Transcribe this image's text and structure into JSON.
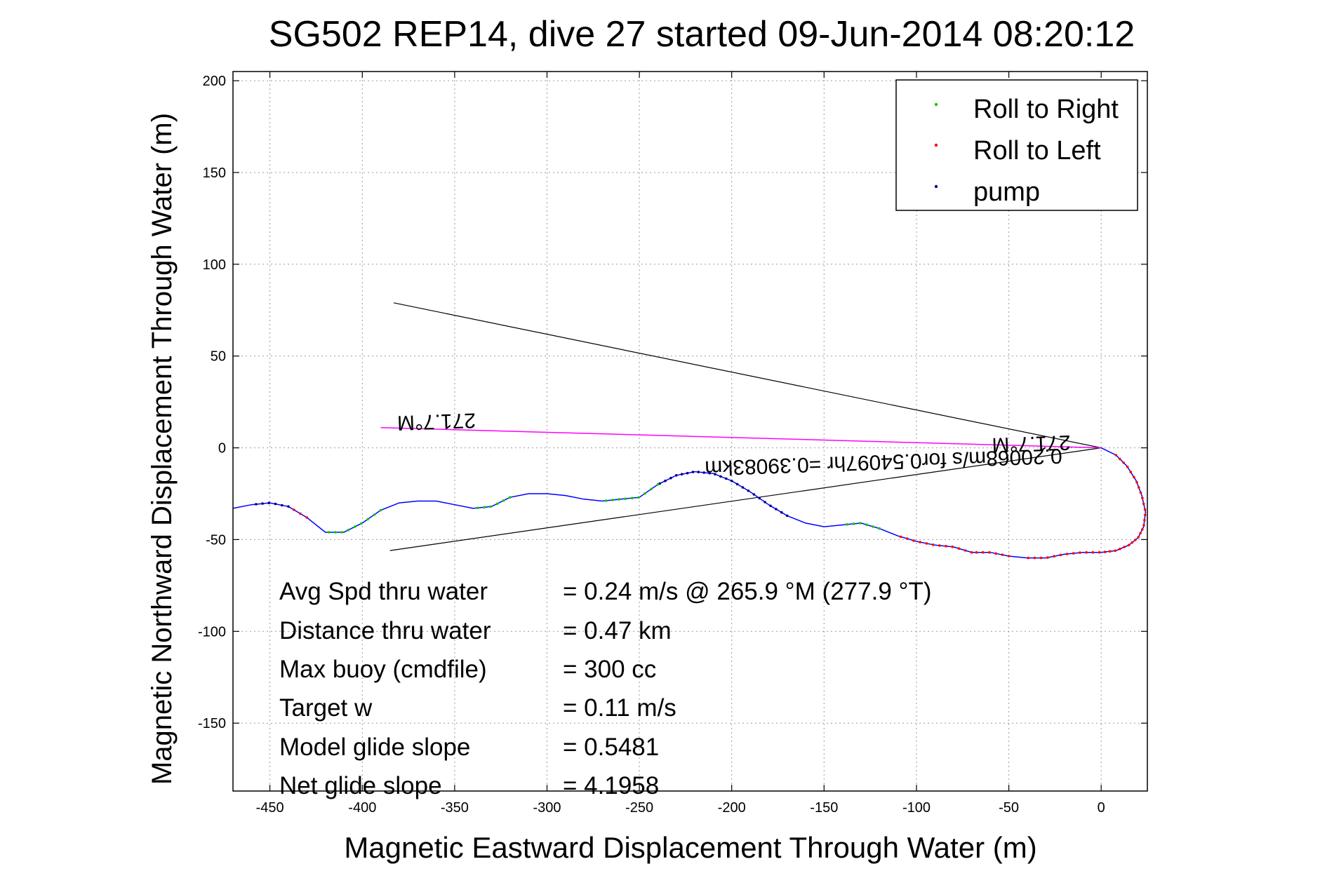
{
  "chart_data": {
    "type": "line",
    "title": "SG502 REP14, dive 27 started 09-Jun-2014 08:20:12",
    "xlabel": "Magnetic Eastward Displacement Through Water (m)",
    "ylabel": "Magnetic Northward Displacement Through Water (m)",
    "xlim": [
      -470,
      25
    ],
    "ylim": [
      -187,
      205
    ],
    "xticks": [
      -450,
      -400,
      -350,
      -300,
      -250,
      -200,
      -150,
      -100,
      -50,
      0
    ],
    "yticks": [
      200,
      150,
      100,
      50,
      0,
      -50,
      -100,
      -150
    ],
    "grid": true,
    "legend_position": "top-right",
    "legend": [
      {
        "label": "Roll to Right",
        "color": "#00cc00"
      },
      {
        "label": "Roll to Left",
        "color": "#ff0000"
      },
      {
        "label": "pump",
        "color": "#000080"
      }
    ],
    "track": {
      "color": "#0000ff",
      "x": [
        0,
        8,
        14,
        19,
        22,
        24,
        23,
        20,
        15,
        8,
        0,
        -10,
        -20,
        -30,
        -40,
        -50,
        -60,
        -70,
        -80,
        -90,
        -100,
        -110,
        -120,
        -130,
        -140,
        -150,
        -160,
        -170,
        -180,
        -190,
        -200,
        -210,
        -220,
        -230,
        -240,
        -250,
        -260,
        -270,
        -280,
        -290,
        -300,
        -310,
        -320,
        -330,
        -340,
        -350,
        -360,
        -370,
        -380,
        -390,
        -400,
        -410,
        -420,
        -430,
        -440,
        -450,
        -460,
        -470
      ],
      "y": [
        0,
        -4,
        -10,
        -18,
        -26,
        -35,
        -43,
        -49,
        -53,
        -56,
        -57,
        -57,
        -58,
        -60,
        -60,
        -59,
        -57,
        -57,
        -54,
        -53,
        -51,
        -48,
        -44,
        -41,
        -42,
        -43,
        -41,
        -37,
        -31,
        -24,
        -18,
        -14,
        -13,
        -15,
        -20,
        -27,
        -28,
        -29,
        -28,
        -26,
        -25,
        -25,
        -27,
        -32,
        -33,
        -31,
        -29,
        -29,
        -30,
        -34,
        -41,
        -46,
        -46,
        -38,
        -32,
        -30,
        -31,
        -33
      ]
    },
    "heading_lines": {
      "color": "#000000",
      "lines": [
        {
          "x": [
            0,
            -383
          ],
          "y": [
            0,
            79
          ]
        },
        {
          "x": [
            0,
            -385
          ],
          "y": [
            0,
            -56
          ]
        }
      ]
    },
    "current_vector": {
      "color": "#ff00ff",
      "x": [
        0,
        -390
      ],
      "y": [
        0,
        11
      ]
    },
    "flipped_annotations": [
      {
        "text": "271.7°M",
        "x": -360,
        "y": 18
      },
      {
        "text": "271.7°M",
        "x": -38,
        "y": 6
      },
      {
        "text": "0.20068m/s for0.54097hr =0.39083km",
        "x": -118,
        "y": -4
      }
    ],
    "stats": [
      {
        "label": "Avg Spd thru water",
        "value": "=  0.24 m/s @ 265.9 °M (277.9 °T)"
      },
      {
        "label": "Distance thru water",
        "value": "=  0.47 km"
      },
      {
        "label": "Max buoy (cmdfile)",
        "value": "= 300 cc"
      },
      {
        "label": "Target w",
        "value": "= 0.11 m/s"
      },
      {
        "label": "Model glide slope",
        "value": "= 0.5481"
      },
      {
        "label": "Net glide slope",
        "value": "= 4.1958"
      }
    ]
  }
}
